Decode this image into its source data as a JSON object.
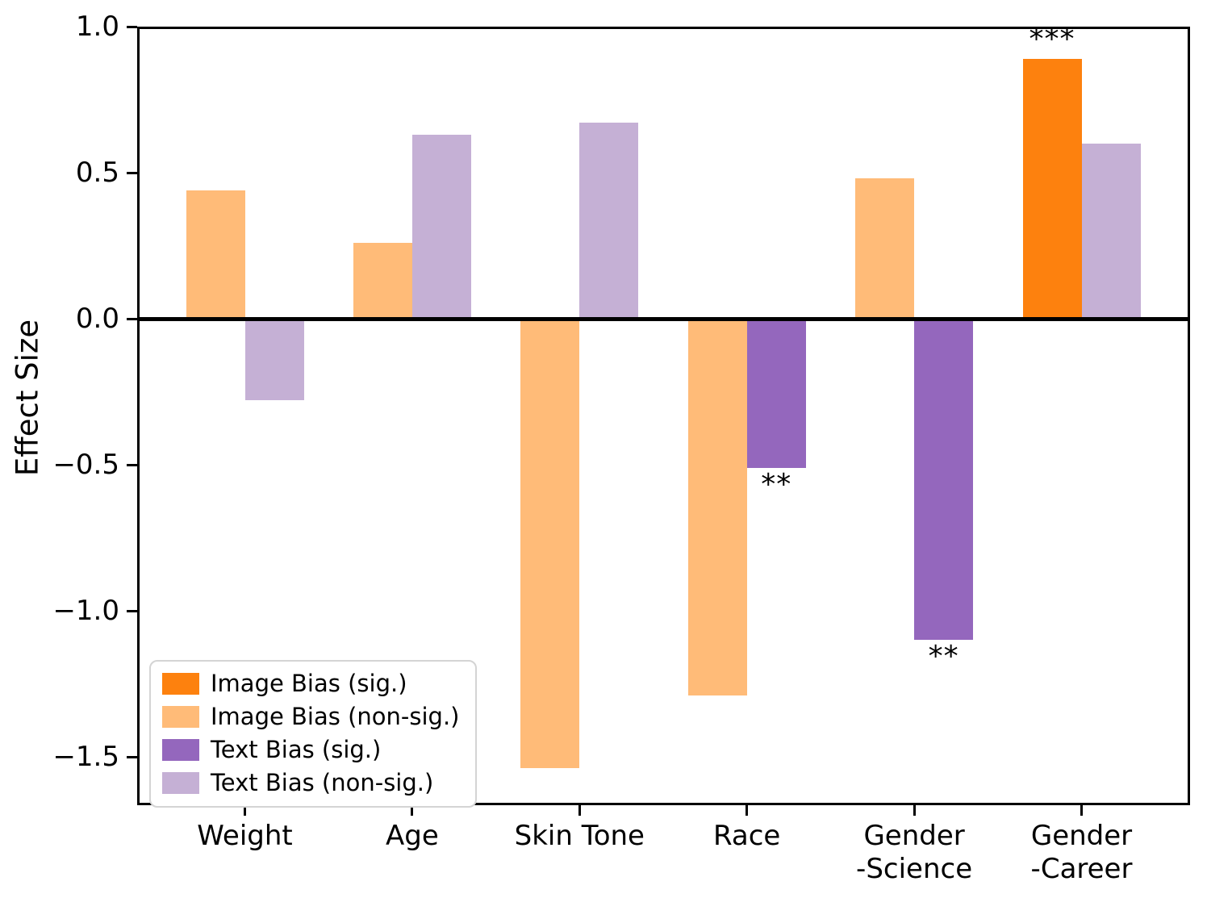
{
  "chart_data": {
    "type": "bar",
    "title": "",
    "xlabel": "",
    "ylabel": "Effect Size",
    "grid": false,
    "zero_line": true,
    "ylim": [
      -1.67,
      1.0
    ],
    "categories": [
      "Weight",
      "Age",
      "Skin Tone",
      "Race",
      "Gender\n-Science",
      "Gender\n-Career"
    ],
    "y_ticks": [
      {
        "value": 1.0,
        "label": "1.0"
      },
      {
        "value": 0.5,
        "label": "0.5"
      },
      {
        "value": 0.0,
        "label": "0.0"
      },
      {
        "value": -0.5,
        "label": "−0.5"
      },
      {
        "value": -1.0,
        "label": "−1.0"
      },
      {
        "value": -1.5,
        "label": "−1.5"
      }
    ],
    "series": [
      {
        "name": "Image Bias",
        "values": [
          0.44,
          0.26,
          -1.54,
          -1.29,
          0.48,
          0.89
        ],
        "significant": [
          false,
          false,
          false,
          false,
          false,
          true
        ],
        "annotations": [
          "",
          "",
          "",
          "",
          "",
          "***"
        ]
      },
      {
        "name": "Text Bias",
        "values": [
          -0.28,
          0.63,
          0.67,
          -0.51,
          -1.1,
          0.6
        ],
        "significant": [
          false,
          false,
          false,
          true,
          true,
          false
        ],
        "annotations": [
          "",
          "",
          "",
          "**",
          "**",
          ""
        ]
      }
    ],
    "colors": {
      "image_bias_sig": "#fd810e",
      "image_bias_nonsig": "#ffbb78",
      "text_bias_sig": "#9467bd",
      "text_bias_nonsig": "#c5b0d5"
    },
    "legend": {
      "position": "lower left",
      "entries": [
        {
          "label": "Image Bias (sig.)",
          "color_key": "image_bias_sig"
        },
        {
          "label": "Image Bias (non-sig.)",
          "color_key": "image_bias_nonsig"
        },
        {
          "label": "Text Bias (sig.)",
          "color_key": "text_bias_sig"
        },
        {
          "label": "Text Bias (non-sig.)",
          "color_key": "text_bias_nonsig"
        }
      ]
    }
  }
}
